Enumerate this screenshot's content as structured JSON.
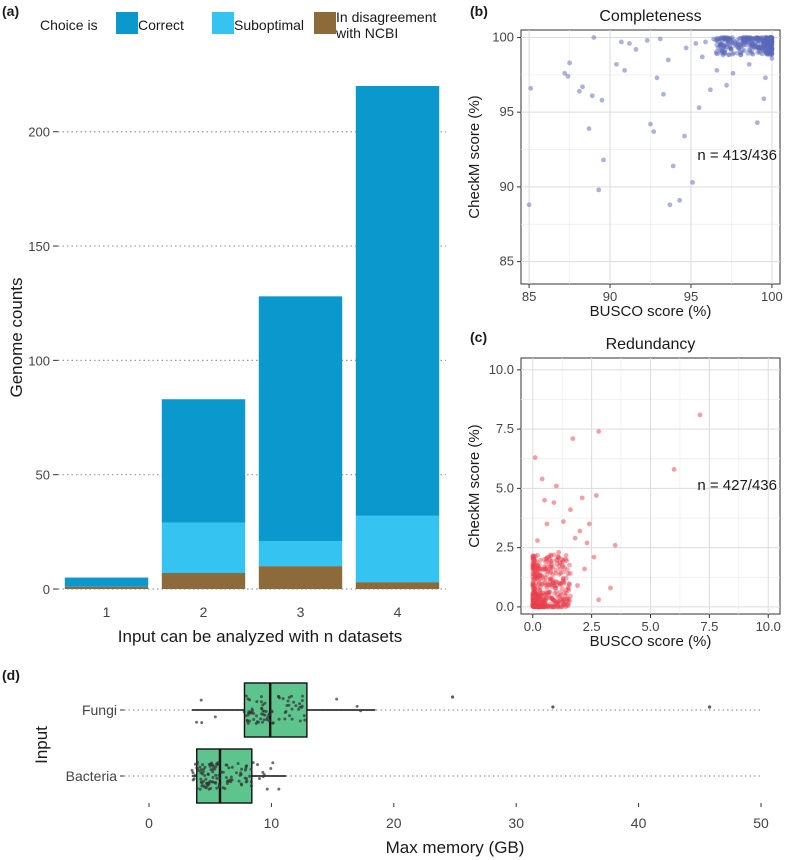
{
  "chart_data": [
    {
      "id": "a",
      "type": "bar",
      "panel_label": "(a)",
      "stacked": true,
      "legend_title": "Choice is",
      "legend_position": "top-left",
      "xlabel": "Input can be analyzed with n datasets",
      "ylabel": "Genome counts",
      "ylim": [
        0,
        220
      ],
      "yticks": [
        0,
        50,
        100,
        150,
        200
      ],
      "categories": [
        "1",
        "2",
        "3",
        "4"
      ],
      "series": [
        {
          "name": "In disagreement\nwith NCBI",
          "color": "#8c6a3a",
          "values": [
            1,
            7,
            10,
            3
          ]
        },
        {
          "name": "Suboptimal",
          "color": "#35c4f2",
          "values": [
            0,
            22,
            11,
            29
          ]
        },
        {
          "name": "Correct",
          "color": "#0b98cc",
          "values": [
            4,
            54,
            107,
            188
          ]
        }
      ],
      "legend_order": [
        "Correct",
        "Suboptimal",
        "In disagreement\nwith NCBI"
      ]
    },
    {
      "id": "b",
      "type": "scatter",
      "panel_label": "(b)",
      "title": "Completeness",
      "xlabel": "BUSCO score (%)",
      "ylabel": "CheckM score (%)",
      "xlim": [
        84.5,
        100.5
      ],
      "ylim": [
        83.5,
        100.5
      ],
      "xticks": [
        85,
        90,
        95,
        100
      ],
      "yticks": [
        85,
        90,
        95,
        100
      ],
      "annotation": "n = 413/436",
      "color": "#5a68b8",
      "points": [
        [
          85,
          88.8
        ],
        [
          85.1,
          96.6
        ],
        [
          87.2,
          97.6
        ],
        [
          87.5,
          98.3
        ],
        [
          87.4,
          97.4
        ],
        [
          88.1,
          96.4
        ],
        [
          88.3,
          96.7
        ],
        [
          88.7,
          93.9
        ],
        [
          88.9,
          96.1
        ],
        [
          89.3,
          89.8
        ],
        [
          89.6,
          91.8
        ],
        [
          89.5,
          95.8
        ],
        [
          89,
          100
        ],
        [
          90.4,
          98.2
        ],
        [
          90.9,
          97.8
        ],
        [
          91.6,
          99.2
        ],
        [
          92.5,
          94.2
        ],
        [
          92.7,
          93.7
        ],
        [
          92.9,
          97.3
        ],
        [
          93.3,
          96.2
        ],
        [
          93.6,
          98.5
        ],
        [
          93.7,
          88.8
        ],
        [
          93.9,
          91.4
        ],
        [
          94.3,
          89.1
        ],
        [
          94.6,
          93.4
        ],
        [
          95.1,
          90.3
        ],
        [
          95.5,
          95.3
        ],
        [
          95.7,
          98.7
        ],
        [
          96.2,
          96.5
        ],
        [
          96.6,
          97.8
        ],
        [
          97.2,
          96.8
        ],
        [
          97.6,
          97.6
        ],
        [
          97.4,
          99.3
        ],
        [
          98.6,
          98.2
        ],
        [
          99.1,
          94.3
        ],
        [
          99.6,
          97.3
        ],
        [
          99.5,
          95.9
        ],
        [
          91.2,
          99.6
        ],
        [
          92.3,
          99.8
        ],
        [
          94.7,
          99.3
        ],
        [
          95.9,
          99.7
        ],
        [
          96.9,
          99.1
        ],
        [
          98.1,
          99.6
        ],
        [
          98.8,
          99.4
        ],
        [
          99.2,
          99.8
        ],
        [
          99.7,
          99.9
        ],
        [
          99.9,
          99.2
        ],
        [
          100,
          98.6
        ],
        [
          99.4,
          98.9
        ],
        [
          98.5,
          99.9
        ],
        [
          97.8,
          99.5
        ],
        [
          96.4,
          99.9
        ],
        [
          95.3,
          99.6
        ],
        [
          93.1,
          99.9
        ],
        [
          90.7,
          99.7
        ]
      ],
      "dense_cluster": {
        "x_range": [
          96.5,
          100
        ],
        "y_range": [
          98.8,
          100
        ],
        "count": 340
      }
    },
    {
      "id": "c",
      "type": "scatter",
      "panel_label": "(c)",
      "title": "Redundancy",
      "xlabel": "BUSCO score (%)",
      "ylabel": "CheckM score (%)",
      "xlim": [
        -0.5,
        10.5
      ],
      "ylim": [
        -0.3,
        10.5
      ],
      "xticks": [
        0,
        2.5,
        5,
        7.5,
        10
      ],
      "xtick_labels": [
        "0.0",
        "2.5",
        "5.0",
        "7.5",
        "10.0"
      ],
      "yticks": [
        0,
        2.5,
        5,
        7.5,
        10
      ],
      "ytick_labels": [
        "0.0",
        "2.5",
        "5.0",
        "7.5",
        "10.0"
      ],
      "annotation": "n = 427/436",
      "color": "#e8404e",
      "points": [
        [
          7.1,
          8.1
        ],
        [
          2.8,
          7.4
        ],
        [
          1.7,
          7.1
        ],
        [
          0.1,
          6.3
        ],
        [
          6,
          5.8
        ],
        [
          2.7,
          4.7
        ],
        [
          2.4,
          3.5
        ],
        [
          3.5,
          2.6
        ],
        [
          3.3,
          0.8
        ],
        [
          0.5,
          4.5
        ],
        [
          0.9,
          4.4
        ],
        [
          1.3,
          3.6
        ],
        [
          2.0,
          3.2
        ],
        [
          1.8,
          2.9
        ],
        [
          2.3,
          2.7
        ],
        [
          2.6,
          2.1
        ],
        [
          0.6,
          3.5
        ],
        [
          1.1,
          2.3
        ],
        [
          1.5,
          1.4
        ],
        [
          0.2,
          2.8
        ],
        [
          0.8,
          1.8
        ],
        [
          1.9,
          0.9
        ],
        [
          2.2,
          1.6
        ],
        [
          2.8,
          0.3
        ],
        [
          0.4,
          5.4
        ],
        [
          1.0,
          5.1
        ],
        [
          1.6,
          4.1
        ],
        [
          2.1,
          4.6
        ]
      ],
      "dense_cluster": {
        "x_range": [
          0,
          1.6
        ],
        "y_range": [
          0,
          2.2
        ],
        "count": 400
      }
    },
    {
      "id": "d",
      "type": "box",
      "panel_label": "(d)",
      "orientation": "horizontal",
      "xlabel": "Max memory (GB)",
      "ylabel": "Input",
      "xlim": [
        0,
        50
      ],
      "xticks": [
        0,
        10,
        20,
        30,
        40,
        50
      ],
      "categories": [
        "Fungi",
        "Bacteria"
      ],
      "color": "#5ec48e",
      "boxes": [
        {
          "name": "Fungi",
          "whisker_low": 3.5,
          "q1": 7.8,
          "median": 9.9,
          "q3": 12.9,
          "whisker_high": 18.5,
          "outliers": [
            24.8,
            33,
            45.8
          ]
        },
        {
          "name": "Bacteria",
          "whisker_low": 3.5,
          "q1": 3.9,
          "median": 5.8,
          "q3": 8.4,
          "whisker_high": 11.2,
          "outliers": []
        }
      ]
    }
  ]
}
